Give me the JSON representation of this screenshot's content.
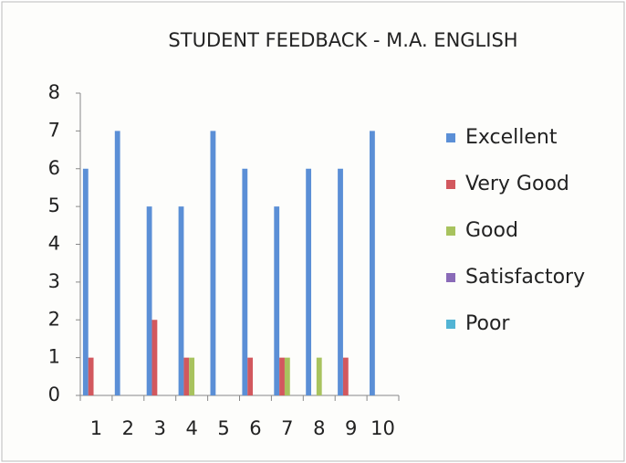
{
  "chart_data": {
    "type": "bar",
    "title": "STUDENT FEEDBACK - M.A. ENGLISH",
    "categories": [
      "1",
      "2",
      "3",
      "4",
      "5",
      "6",
      "7",
      "8",
      "9",
      "10"
    ],
    "series": [
      {
        "name": "Excellent",
        "color": "#5b8fd6",
        "values": [
          6,
          7,
          5,
          5,
          7,
          6,
          5,
          6,
          6,
          7
        ]
      },
      {
        "name": "Very Good",
        "color": "#d2585e",
        "values": [
          1,
          0,
          2,
          1,
          0,
          1,
          1,
          0,
          1,
          0
        ]
      },
      {
        "name": "Good",
        "color": "#a8c35e",
        "values": [
          0,
          0,
          0,
          1,
          0,
          0,
          1,
          1,
          0,
          0
        ]
      },
      {
        "name": "Satisfactory",
        "color": "#8a6bb8",
        "values": [
          0,
          0,
          0,
          0,
          0,
          0,
          0,
          0,
          0,
          0
        ]
      },
      {
        "name": "Poor",
        "color": "#52b4d4",
        "values": [
          0,
          0,
          0,
          0,
          0,
          0,
          0,
          0,
          0,
          0
        ]
      }
    ],
    "ylim": [
      0,
      8
    ],
    "yticks": [
      0,
      1,
      2,
      3,
      4,
      5,
      6,
      7,
      8
    ],
    "legend": "right"
  }
}
